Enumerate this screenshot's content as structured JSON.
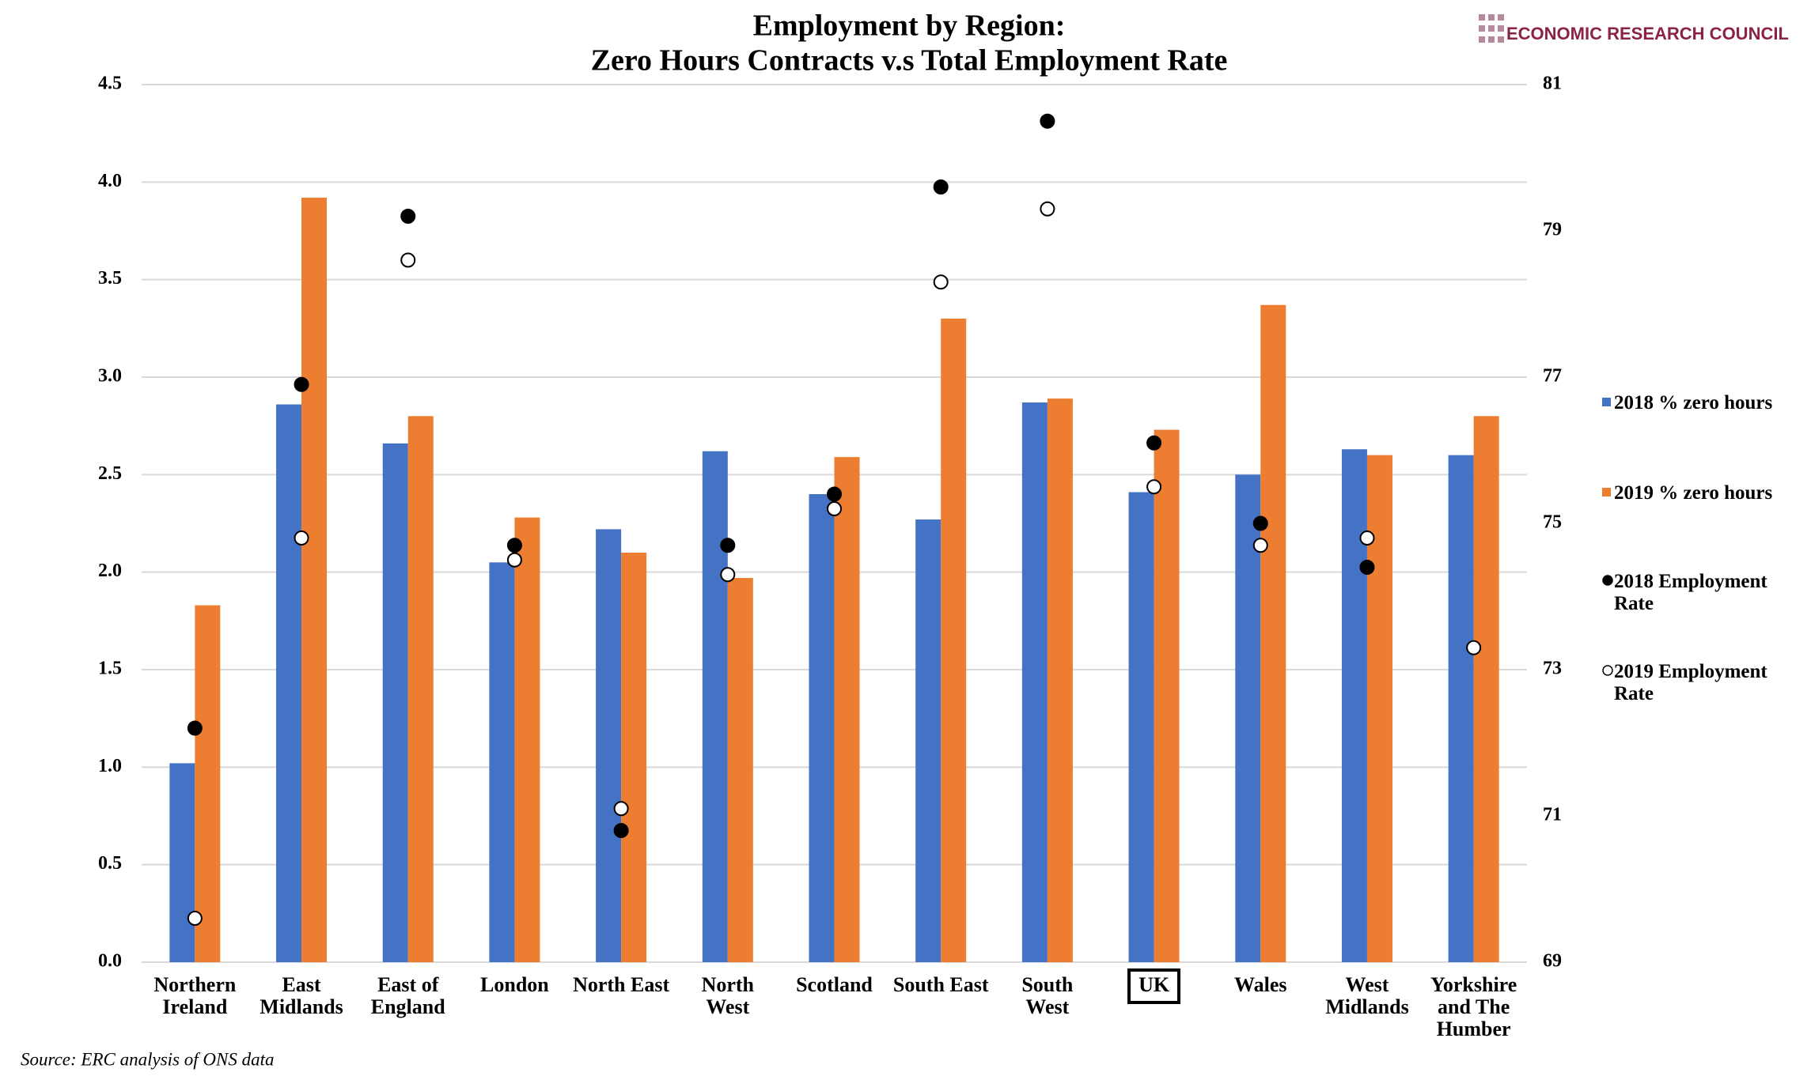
{
  "chart_data": {
    "type": "bar",
    "title": "Employment by Region:",
    "subtitle": "Zero Hours Contracts v.s Total Employment Rate",
    "brand": "ECONOMIC RESEARCH COUNCIL",
    "source": "Source: ERC analysis of ONS data",
    "categories": [
      "Northern Ireland",
      "East Midlands",
      "East of England",
      "London",
      "North East",
      "North West",
      "Scotland",
      "South East",
      "South West",
      "UK",
      "Wales",
      "West Midlands",
      "Yorkshire and The Humber"
    ],
    "boxed_category": 9,
    "series": [
      {
        "name": "2018 % zero hours",
        "color": "#4472c4",
        "values": [
          1.02,
          2.86,
          2.66,
          2.05,
          2.22,
          2.62,
          2.4,
          2.27,
          2.87,
          2.41,
          2.5,
          2.63,
          2.6
        ]
      },
      {
        "name": "2019 % zero hours",
        "color": "#ed7d31",
        "values": [
          1.83,
          3.92,
          2.8,
          2.28,
          2.1,
          1.97,
          2.59,
          3.3,
          2.89,
          2.73,
          3.37,
          2.6,
          2.8
        ]
      },
      {
        "name": "2018 Employment Rate",
        "type": "scatter",
        "axis": "y2",
        "color": "#000000",
        "values": [
          72.2,
          76.9,
          79.2,
          74.7,
          70.8,
          74.7,
          75.4,
          79.6,
          80.5,
          76.1,
          75.0,
          74.4,
          null
        ]
      },
      {
        "name": "2019 Employment Rate",
        "type": "scatter",
        "axis": "y2",
        "color": "#ffffff",
        "values": [
          69.6,
          74.8,
          78.6,
          74.5,
          71.1,
          74.3,
          75.2,
          78.3,
          79.3,
          75.5,
          74.7,
          74.8,
          73.3
        ]
      }
    ],
    "ylim": [
      0,
      4.5
    ],
    "yticks": [
      {
        "value": 0,
        "label": "0.0"
      },
      0.5,
      {
        "value": 1,
        "label": "1.0"
      },
      1.5,
      {
        "value": 2,
        "label": "2.0"
      },
      2.5,
      {
        "value": 3,
        "label": "3.0"
      },
      3.5,
      {
        "value": 4,
        "label": "4.0"
      },
      4.5
    ],
    "y2lim": [
      69,
      81
    ],
    "y2ticks": [
      69,
      71,
      73,
      75,
      77,
      79,
      81
    ],
    "grid": true,
    "legend": "right"
  }
}
